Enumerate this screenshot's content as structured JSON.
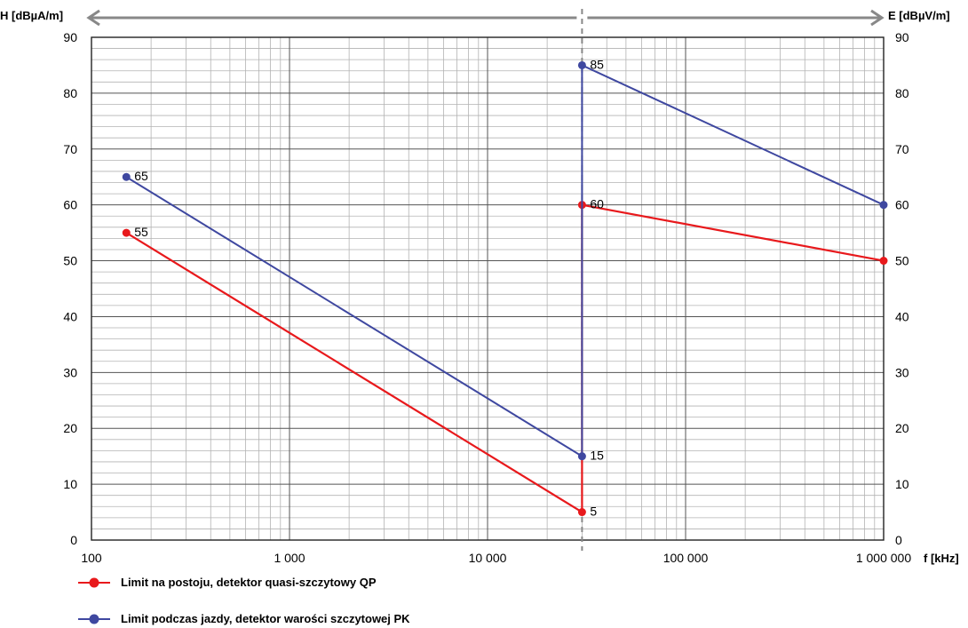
{
  "chart_data": {
    "type": "line",
    "xscale": "log",
    "xlim": [
      100,
      1000000
    ],
    "ylim": [
      0,
      90
    ],
    "y_ticks": [
      0,
      10,
      20,
      30,
      40,
      50,
      60,
      70,
      80,
      90
    ],
    "x_ticks": [
      100,
      1000,
      10000,
      100000,
      1000000
    ],
    "x_tick_labels": [
      "100",
      "1 000",
      "10 000",
      "100 000",
      "1 000 000"
    ],
    "xlabel": "f [kHz]",
    "ylabel_left": "H [dBµA/m]",
    "ylabel_right": "E [dBµV/m]",
    "divider_x": 30000,
    "grid": true,
    "legend_position": "bottom-left",
    "series": [
      {
        "name": "Limit na postoju, detektor quasi-szczytowy QP",
        "color": "#e8191c",
        "points": [
          {
            "x": 150,
            "y": 55,
            "label": "55"
          },
          {
            "x": 30000,
            "y": 5,
            "label": "5"
          },
          {
            "x": 30000,
            "y": 60,
            "label": "60"
          },
          {
            "x": 1000000,
            "y": 50,
            "label": ""
          }
        ]
      },
      {
        "name": "Limit podczas jazdy, detektor warości szczytowej PK",
        "color": "#3f48a0",
        "points": [
          {
            "x": 150,
            "y": 65,
            "label": "65"
          },
          {
            "x": 30000,
            "y": 15,
            "label": "15"
          },
          {
            "x": 30000,
            "y": 85,
            "label": "85"
          },
          {
            "x": 1000000,
            "y": 60,
            "label": ""
          }
        ]
      }
    ]
  }
}
